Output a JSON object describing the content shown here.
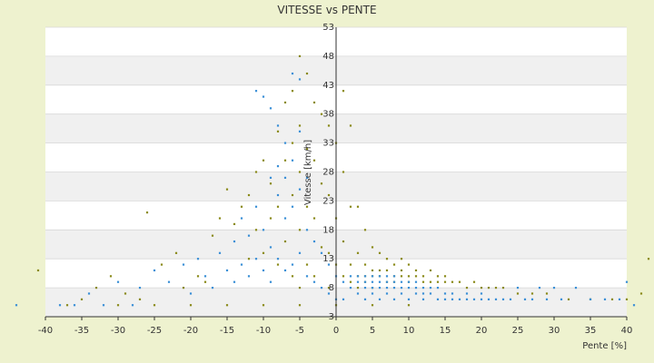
{
  "chart_data": {
    "type": "scatter",
    "title": "VITESSE vs PENTE",
    "xlabel": "Pente [%]",
    "ylabel": "Vitesse [km/h]",
    "xlim": [
      -40,
      40
    ],
    "ylim": [
      3,
      53
    ],
    "x_ticks": [
      -40,
      -35,
      -30,
      -25,
      -20,
      -15,
      -10,
      -5,
      0,
      5,
      10,
      15,
      20,
      25,
      30,
      35,
      40
    ],
    "y_ticks": [
      3,
      8,
      13,
      18,
      23,
      28,
      33,
      38,
      43,
      48,
      53
    ],
    "grid": true,
    "legend": "none",
    "colors": {
      "olive": "#8a8a1a",
      "blue": "#3a8fd6",
      "band": "#f0f0f0",
      "plot": "#ffffff",
      "axis": "#333333"
    },
    "series": [
      {
        "color": "olive",
        "points": [
          [
            -41,
            11
          ],
          [
            -35,
            6
          ],
          [
            -33,
            8
          ],
          [
            -31,
            10
          ],
          [
            -29,
            7
          ],
          [
            -27,
            6
          ],
          [
            -26,
            21
          ],
          [
            -24,
            12
          ],
          [
            -22,
            14
          ],
          [
            -21,
            8
          ],
          [
            -19,
            10
          ],
          [
            -18,
            9
          ],
          [
            -17,
            17
          ],
          [
            -16,
            20
          ],
          [
            -15,
            25
          ],
          [
            -14,
            19
          ],
          [
            -13,
            22
          ],
          [
            -12,
            24
          ],
          [
            -12,
            13
          ],
          [
            -11,
            28
          ],
          [
            -11,
            18
          ],
          [
            -10,
            30
          ],
          [
            -10,
            14
          ],
          [
            -9,
            26
          ],
          [
            -9,
            20
          ],
          [
            -8,
            35
          ],
          [
            -8,
            22
          ],
          [
            -8,
            12
          ],
          [
            -7,
            40
          ],
          [
            -7,
            30
          ],
          [
            -7,
            16
          ],
          [
            -6,
            42
          ],
          [
            -6,
            33
          ],
          [
            -6,
            24
          ],
          [
            -6,
            10
          ],
          [
            -5,
            48
          ],
          [
            -5,
            36
          ],
          [
            -5,
            28
          ],
          [
            -5,
            18
          ],
          [
            -5,
            8
          ],
          [
            -4,
            45
          ],
          [
            -4,
            32
          ],
          [
            -4,
            22
          ],
          [
            -4,
            12
          ],
          [
            -3,
            40
          ],
          [
            -3,
            30
          ],
          [
            -3,
            20
          ],
          [
            -3,
            10
          ],
          [
            -2,
            38
          ],
          [
            -2,
            26
          ],
          [
            -2,
            15
          ],
          [
            -1,
            36
          ],
          [
            -1,
            24
          ],
          [
            -1,
            14
          ],
          [
            -1,
            8
          ],
          [
            0,
            33
          ],
          [
            0,
            20
          ],
          [
            0,
            12
          ],
          [
            1,
            42
          ],
          [
            1,
            28
          ],
          [
            1,
            16
          ],
          [
            1,
            10
          ],
          [
            2,
            36
          ],
          [
            2,
            22
          ],
          [
            2,
            12
          ],
          [
            2,
            9
          ],
          [
            3,
            22
          ],
          [
            3,
            14
          ],
          [
            3,
            10
          ],
          [
            3,
            8
          ],
          [
            4,
            18
          ],
          [
            4,
            12
          ],
          [
            4,
            10
          ],
          [
            4,
            9
          ],
          [
            5,
            15
          ],
          [
            5,
            11
          ],
          [
            5,
            10
          ],
          [
            5,
            8
          ],
          [
            6,
            14
          ],
          [
            6,
            11
          ],
          [
            6,
            10
          ],
          [
            7,
            13
          ],
          [
            7,
            11
          ],
          [
            7,
            9
          ],
          [
            8,
            12
          ],
          [
            8,
            10
          ],
          [
            8,
            9
          ],
          [
            9,
            13
          ],
          [
            9,
            11
          ],
          [
            9,
            10
          ],
          [
            10,
            12
          ],
          [
            10,
            10
          ],
          [
            10,
            9
          ],
          [
            11,
            11
          ],
          [
            11,
            10
          ],
          [
            12,
            10
          ],
          [
            12,
            9
          ],
          [
            13,
            11
          ],
          [
            13,
            9
          ],
          [
            14,
            10
          ],
          [
            14,
            9
          ],
          [
            15,
            10
          ],
          [
            15,
            9
          ],
          [
            16,
            9
          ],
          [
            17,
            9
          ],
          [
            18,
            8
          ],
          [
            19,
            9
          ],
          [
            20,
            8
          ],
          [
            21,
            8
          ],
          [
            22,
            8
          ],
          [
            23,
            8
          ],
          [
            25,
            7
          ],
          [
            27,
            7
          ],
          [
            29,
            7
          ],
          [
            32,
            6
          ],
          [
            35,
            6
          ],
          [
            38,
            6
          ],
          [
            40,
            6
          ],
          [
            42,
            7
          ],
          [
            43,
            13
          ],
          [
            -37,
            5
          ],
          [
            -30,
            5
          ],
          [
            -25,
            5
          ],
          [
            -20,
            5
          ],
          [
            -15,
            5
          ],
          [
            -10,
            5
          ],
          [
            -5,
            5
          ],
          [
            0,
            5
          ],
          [
            5,
            5
          ],
          [
            10,
            5
          ]
        ]
      },
      {
        "color": "blue",
        "points": [
          [
            -44,
            5
          ],
          [
            -38,
            5
          ],
          [
            -34,
            7
          ],
          [
            -30,
            9
          ],
          [
            -27,
            8
          ],
          [
            -25,
            11
          ],
          [
            -23,
            9
          ],
          [
            -21,
            12
          ],
          [
            -20,
            7
          ],
          [
            -19,
            13
          ],
          [
            -18,
            10
          ],
          [
            -17,
            8
          ],
          [
            -16,
            14
          ],
          [
            -15,
            11
          ],
          [
            -14,
            9
          ],
          [
            -14,
            16
          ],
          [
            -13,
            12
          ],
          [
            -13,
            20
          ],
          [
            -12,
            10
          ],
          [
            -12,
            17
          ],
          [
            -11,
            13
          ],
          [
            -11,
            22
          ],
          [
            -11,
            42
          ],
          [
            -10,
            41
          ],
          [
            -10,
            18
          ],
          [
            -10,
            11
          ],
          [
            -9,
            39
          ],
          [
            -9,
            27
          ],
          [
            -9,
            15
          ],
          [
            -9,
            9
          ],
          [
            -8,
            36
          ],
          [
            -8,
            29
          ],
          [
            -8,
            24
          ],
          [
            -8,
            13
          ],
          [
            -7,
            33
          ],
          [
            -7,
            27
          ],
          [
            -7,
            20
          ],
          [
            -7,
            11
          ],
          [
            -6,
            45
          ],
          [
            -6,
            30
          ],
          [
            -6,
            22
          ],
          [
            -6,
            12
          ],
          [
            -5,
            44
          ],
          [
            -5,
            35
          ],
          [
            -5,
            25
          ],
          [
            -5,
            14
          ],
          [
            -4,
            27
          ],
          [
            -4,
            18
          ],
          [
            -4,
            10
          ],
          [
            -3,
            16
          ],
          [
            -3,
            9
          ],
          [
            -2,
            14
          ],
          [
            -2,
            8
          ],
          [
            -1,
            12
          ],
          [
            -1,
            7
          ],
          [
            0,
            10
          ],
          [
            0,
            6
          ],
          [
            1,
            9
          ],
          [
            1,
            6
          ],
          [
            2,
            10
          ],
          [
            2,
            8
          ],
          [
            3,
            10
          ],
          [
            3,
            9
          ],
          [
            3,
            7
          ],
          [
            4,
            10
          ],
          [
            4,
            9
          ],
          [
            4,
            8
          ],
          [
            4,
            6
          ],
          [
            5,
            10
          ],
          [
            5,
            9
          ],
          [
            5,
            8
          ],
          [
            5,
            7
          ],
          [
            6,
            10
          ],
          [
            6,
            9
          ],
          [
            6,
            8
          ],
          [
            6,
            6
          ],
          [
            7,
            10
          ],
          [
            7,
            9
          ],
          [
            7,
            8
          ],
          [
            7,
            7
          ],
          [
            8,
            10
          ],
          [
            8,
            9
          ],
          [
            8,
            8
          ],
          [
            8,
            6
          ],
          [
            9,
            9
          ],
          [
            9,
            8
          ],
          [
            9,
            7
          ],
          [
            10,
            9
          ],
          [
            10,
            8
          ],
          [
            10,
            6
          ],
          [
            11,
            9
          ],
          [
            11,
            8
          ],
          [
            11,
            7
          ],
          [
            12,
            8
          ],
          [
            12,
            7
          ],
          [
            12,
            6
          ],
          [
            13,
            8
          ],
          [
            13,
            7
          ],
          [
            14,
            8
          ],
          [
            14,
            6
          ],
          [
            15,
            7
          ],
          [
            15,
            6
          ],
          [
            16,
            7
          ],
          [
            16,
            6
          ],
          [
            17,
            6
          ],
          [
            18,
            7
          ],
          [
            18,
            6
          ],
          [
            19,
            6
          ],
          [
            20,
            7
          ],
          [
            20,
            6
          ],
          [
            21,
            6
          ],
          [
            22,
            6
          ],
          [
            23,
            6
          ],
          [
            24,
            6
          ],
          [
            25,
            8
          ],
          [
            26,
            6
          ],
          [
            27,
            6
          ],
          [
            28,
            8
          ],
          [
            29,
            6
          ],
          [
            30,
            8
          ],
          [
            31,
            6
          ],
          [
            33,
            8
          ],
          [
            35,
            6
          ],
          [
            37,
            6
          ],
          [
            39,
            6
          ],
          [
            40,
            9
          ],
          [
            41,
            5
          ],
          [
            -36,
            5
          ],
          [
            -32,
            5
          ],
          [
            -28,
            5
          ]
        ]
      }
    ]
  }
}
